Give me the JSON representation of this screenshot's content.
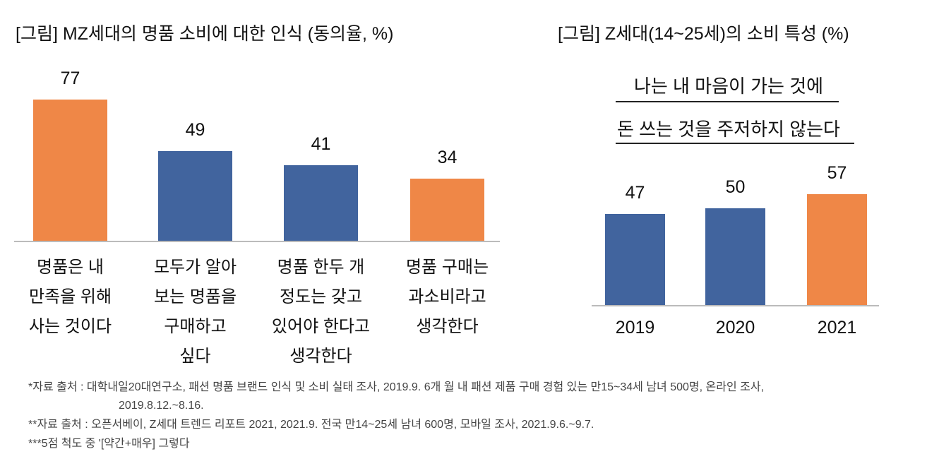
{
  "chart_data": [
    {
      "type": "bar",
      "title": "[그림] MZ세대의 명품 소비에 대한 인식 (동의율, %)",
      "categories": [
        "명품은 내\n만족을 위해\n사는 것이다",
        "모두가 알아\n보는 명품을\n구매하고\n싶다",
        "명품 한두 개\n정도는 갖고\n있어야 한다고\n생각한다",
        "명품 구매는\n과소비라고\n생각한다"
      ],
      "values": [
        77,
        49,
        41,
        34
      ],
      "colors": [
        "#EF8747",
        "#41649E",
        "#41649E",
        "#EF8747"
      ],
      "xlabel": "",
      "ylabel": "",
      "ylim": [
        0,
        80
      ]
    },
    {
      "type": "bar",
      "title": "[그림] Z세대(14~25세)의 소비 특성 (%)",
      "subtitle_lines": [
        "나는 내 마음이 가는 것에",
        "돈 쓰는 것을 주저하지 않는다"
      ],
      "categories": [
        "2019",
        "2020",
        "2021"
      ],
      "values": [
        47,
        50,
        57
      ],
      "colors": [
        "#41649E",
        "#41649E",
        "#EF8747"
      ],
      "xlabel": "",
      "ylabel": "",
      "ylim": [
        0,
        60
      ]
    }
  ],
  "footnotes": [
    "*자료 출처 : 대학내일20대연구소, 패션 명품 브랜드 인식 및 소비 실태 조사, 2019.9. 6개 월 내 패션 제품 구매 경험 있는 만15~34세 남녀 500명, 온라인 조사,",
    "2019.8.12.~8.16.",
    "**자료 출처 : 오픈서베이, Z세대 트렌드 리포트 2021, 2021.9. 전국 만14~25세 남녀 600명, 모바일 조사, 2021.9.6.~9.7.",
    "***5점 척도 중 '[약간+매우] 그렇다"
  ]
}
